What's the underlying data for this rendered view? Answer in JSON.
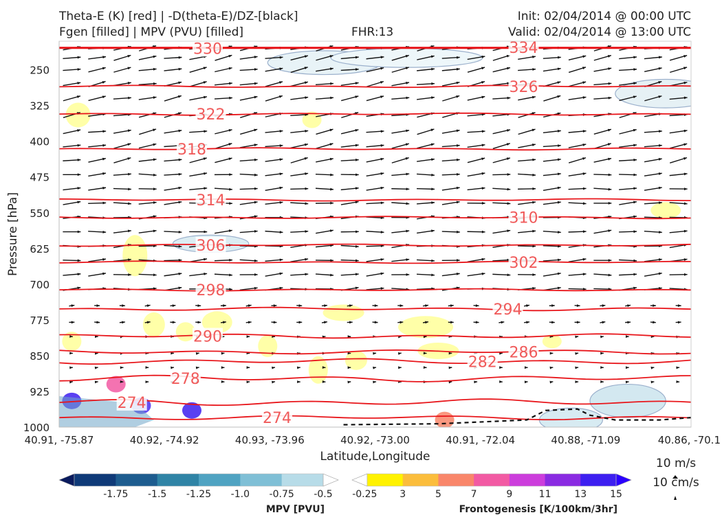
{
  "header": {
    "title_line1": "Theta-E (K) [red] | -D(theta-E)/DZ-[black]",
    "title_line2": "Fgen [filled] | MPV (PVU) [filled]",
    "fhr": "FHR:13",
    "init": "Init: 02/04/2014 @ 00:00 UTC",
    "valid": "Valid: 02/04/2014 @ 13:00 UTC"
  },
  "chart_data": {
    "type": "cross-section",
    "xlabel": "Latitude,Longitude",
    "ylabel": "Pressure [hPa]",
    "x_ticks": [
      "40.91, -75.87",
      "40.92, -74.92",
      "40.93, -73.96",
      "40.92, -73.00",
      "40.91, -72.04",
      "40.88, -71.09",
      "40.86, -70.1"
    ],
    "y_ticks": [
      250,
      325,
      400,
      475,
      550,
      625,
      700,
      775,
      850,
      925,
      1000
    ],
    "ylim": [
      1000,
      190
    ],
    "theta_e_contours": [
      {
        "label": "330",
        "p": 205,
        "x": 0.235,
        "wave": 0
      },
      {
        "label": "334",
        "p": 203,
        "x": 0.735,
        "wave": 0
      },
      {
        "label": "326",
        "p": 285,
        "x": 0.735,
        "wave": 1
      },
      {
        "label": "322",
        "p": 343,
        "x": 0.24,
        "wave": 1
      },
      {
        "label": "318",
        "p": 416,
        "x": 0.21,
        "wave": 1
      },
      {
        "label": "314",
        "p": 523,
        "x": 0.24,
        "wave": 1
      },
      {
        "label": "310",
        "p": 560,
        "x": 0.735,
        "wave": 1
      },
      {
        "label": "306",
        "p": 618,
        "x": 0.24,
        "wave": 1
      },
      {
        "label": "302",
        "p": 654,
        "x": 0.735,
        "wave": 1
      },
      {
        "label": "298",
        "p": 712,
        "x": 0.24,
        "wave": 1
      },
      {
        "label": "294",
        "p": 752,
        "x": 0.71,
        "wave": 1.5
      },
      {
        "label": "290",
        "p": 809,
        "x": 0.235,
        "wave": 2
      },
      {
        "label": "286",
        "p": 842,
        "x": 0.735,
        "wave": 2
      },
      {
        "label": "282",
        "p": 862,
        "x": 0.67,
        "wave": 2.5
      },
      {
        "label": "278",
        "p": 898,
        "x": 0.2,
        "wave": 3
      },
      {
        "label": "274",
        "p": 948,
        "x": 0.115,
        "wave": 3
      },
      {
        "label": "274",
        "p": 980,
        "x": 0.345,
        "wave": 2
      }
    ],
    "legends": [
      {
        "name": "MPV [PVU]",
        "ticks": [
          "-1.75",
          "-1.5",
          "-1.25",
          "-1.0",
          "-0.75",
          "-0.5",
          "-0.25"
        ],
        "colors": [
          "#0a1b5e",
          "#0f3a78",
          "#1d5c8f",
          "#2f84a6",
          "#4fa3c2",
          "#7fbfd6",
          "#b7dce8",
          "#ffffff"
        ]
      },
      {
        "name": "Frontogenesis [K/100km/3hr]",
        "ticks": [
          "3",
          "5",
          "7",
          "9",
          "11",
          "13",
          "15"
        ],
        "colors": [
          "#ffffff",
          "#fff200",
          "#fbbd3c",
          "#f9866a",
          "#f25aa3",
          "#cc3ddc",
          "#8a2be2",
          "#3d1ff0",
          "#2b00ff"
        ]
      }
    ],
    "wind_reference": [
      "10 m/s",
      "10 cm/s"
    ]
  }
}
